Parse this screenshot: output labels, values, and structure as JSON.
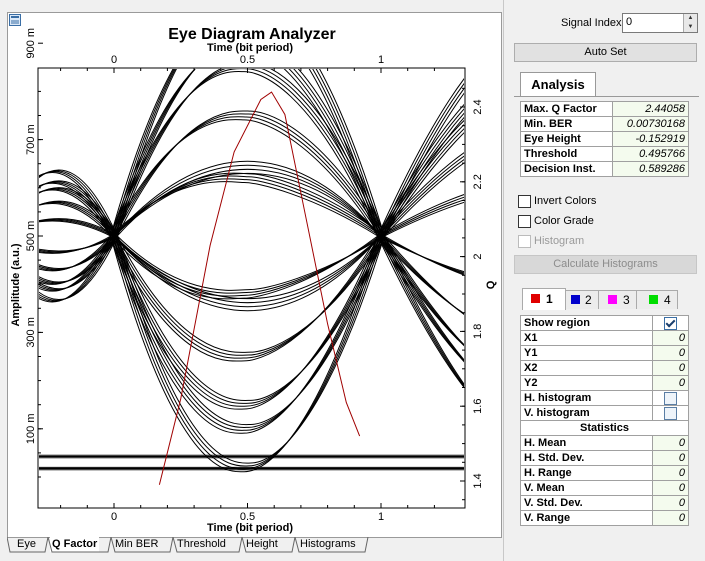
{
  "plot": {
    "title": "Eye Diagram Analyzer",
    "top_axis_label": "Time (bit period)",
    "bottom_axis_label": "Time (bit period)",
    "left_axis_label": "Amplitude (a.u.)",
    "right_axis_label": "Q",
    "x_ticks": [
      "0",
      "0.5",
      "1"
    ],
    "y_left_ticks": [
      "100 m",
      "300 m",
      "500 m",
      "700 m",
      "900 m"
    ],
    "y_right_ticks": [
      "1.4",
      "1.6",
      "1.8",
      "2",
      "2.2",
      "2.4"
    ],
    "trace_color": "#000000",
    "q_curve_color": "#a00000"
  },
  "bottom_tabs": [
    "Eye",
    "Q Factor",
    "Min BER",
    "Threshold",
    "Height",
    "Histograms"
  ],
  "active_bottom_tab": "Q Factor",
  "signal_index": {
    "label": "Signal Index:",
    "value": "0"
  },
  "auto_set_label": "Auto Set",
  "analysis_tab_label": "Analysis",
  "analysis": [
    {
      "key": "Max. Q Factor",
      "value": "2.44058"
    },
    {
      "key": "Min. BER",
      "value": "0.00730168"
    },
    {
      "key": "Eye Height",
      "value": "-0.152919"
    },
    {
      "key": "Threshold",
      "value": "0.495766"
    },
    {
      "key": "Decision Inst.",
      "value": "0.589286"
    }
  ],
  "options": {
    "invert_colors": "Invert Colors",
    "color_grade": "Color Grade",
    "histogram": "Histogram"
  },
  "calc_hist_label": "Calculate Histograms",
  "channels": [
    {
      "label": "1",
      "color": "#e00000"
    },
    {
      "label": "2",
      "color": "#0000cc"
    },
    {
      "label": "3",
      "color": "#ff00ff"
    },
    {
      "label": "4",
      "color": "#00dd00"
    }
  ],
  "region": {
    "show_region": "Show region",
    "x1": {
      "k": "X1",
      "v": "0"
    },
    "y1": {
      "k": "Y1",
      "v": "0"
    },
    "x2": {
      "k": "X2",
      "v": "0"
    },
    "y2": {
      "k": "Y2",
      "v": "0"
    },
    "h_hist": "H. histogram",
    "v_hist": "V. histogram",
    "statistics": "Statistics",
    "stats": [
      {
        "k": "H. Mean",
        "v": "0"
      },
      {
        "k": "H. Std. Dev.",
        "v": "0"
      },
      {
        "k": "H. Range",
        "v": "0"
      },
      {
        "k": "V. Mean",
        "v": "0"
      },
      {
        "k": "V. Std. Dev.",
        "v": "0"
      },
      {
        "k": "V. Range",
        "v": "0"
      }
    ]
  }
}
